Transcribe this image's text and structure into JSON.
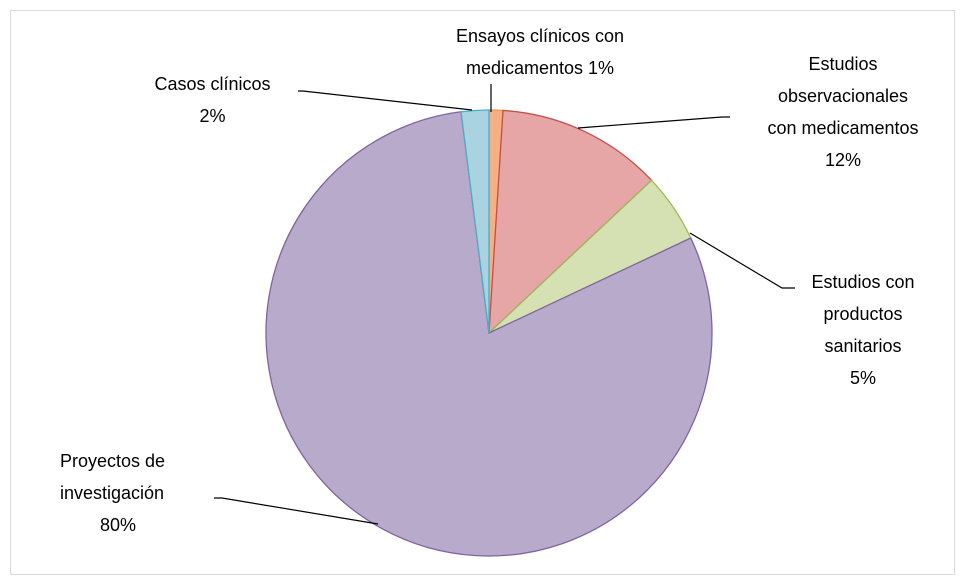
{
  "chart_data": {
    "type": "pie",
    "categories": [
      "Ensayos clínicos con medicamentos",
      "Estudios observacionales con medicamentos",
      "Estudios con productos sanitarios",
      "Proyectos de investigación",
      "Casos clínicos"
    ],
    "values": [
      1,
      12,
      5,
      80,
      2
    ],
    "value_labels": [
      "1%",
      "12%",
      "5%",
      "80%",
      "2%"
    ],
    "colors": [
      "#f5b183",
      "#e6a6a5",
      "#d5e1b3",
      "#b8aacb",
      "#a9d3e1"
    ],
    "stroke_colors": [
      "#f79646",
      "#c0504d",
      "#9bbb59",
      "#8064a2",
      "#4bacc6"
    ]
  }
}
